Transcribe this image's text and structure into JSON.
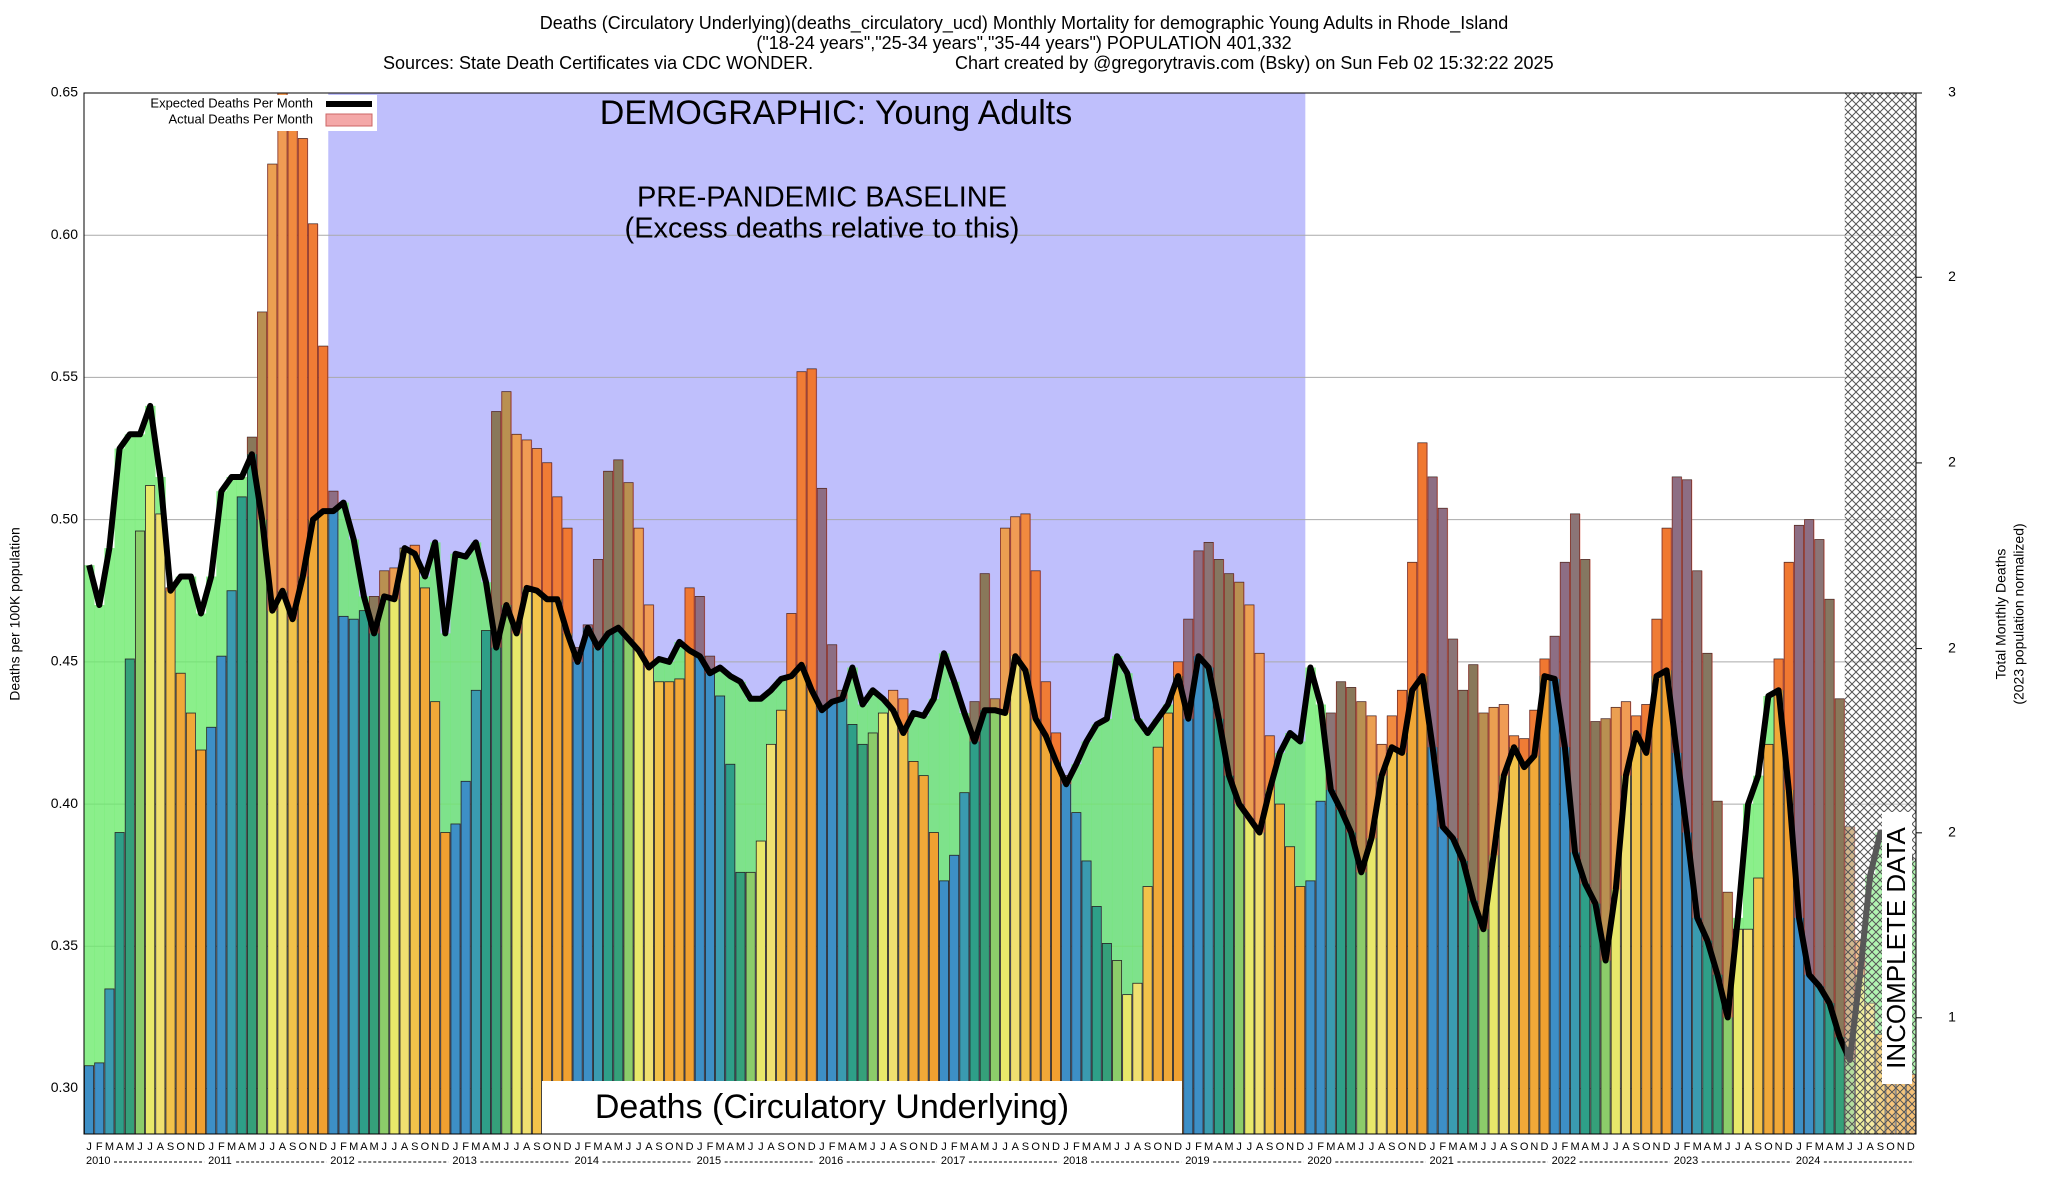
{
  "chart_data": {
    "type": "bar",
    "title": "Deaths (Circulatory Underlying)(deaths_circulatory_ucd) Monthly Mortality for demographic Young Adults in Rhode_Island",
    "subtitle": "(\"18-24 years\",\"25-34 years\",\"35-44 years\") POPULATION 401,332",
    "sources": "Sources: State Death Certificates via CDC WONDER.",
    "credit": "Chart created by @gregorytravis.com (Bsky) on Sun Feb 02 15:32:22 2025",
    "ylabel": "Deaths per 100K population",
    "y2label": "Total Monthly Deaths",
    "y2label_note": "(2023 population normalized)",
    "annotations": {
      "demographic": "DEMOGRAPHIC: Young Adults",
      "baseline": "PRE-PANDEMIC BASELINE",
      "baseline_note": "(Excess deaths relative to this)",
      "cause": "Deaths (Circulatory Underlying)",
      "incomplete": "INCOMPLETE DATA"
    },
    "years": [
      "2010",
      "2011",
      "2012",
      "2013",
      "2014",
      "2015",
      "2016",
      "2017",
      "2018",
      "2019",
      "2020",
      "2021",
      "2022",
      "2023",
      "2024"
    ],
    "categories": [
      "J",
      "F",
      "M",
      "A",
      "M",
      "J",
      "J",
      "A",
      "S",
      "O",
      "N",
      "D",
      "J",
      "F",
      "M",
      "A",
      "M",
      "J",
      "J",
      "A",
      "S",
      "O",
      "N",
      "D",
      "J",
      "F",
      "M",
      "A",
      "M",
      "J",
      "J",
      "A",
      "S",
      "O",
      "N",
      "D",
      "J",
      "F",
      "M",
      "A",
      "M",
      "J",
      "J",
      "A",
      "S",
      "O",
      "N",
      "D",
      "J",
      "F",
      "M",
      "A",
      "M",
      "J",
      "J",
      "A",
      "S",
      "O",
      "N",
      "D",
      "J",
      "F",
      "M",
      "A",
      "M",
      "J",
      "J",
      "A",
      "S",
      "O",
      "N",
      "D",
      "J",
      "F",
      "M",
      "A",
      "M",
      "J",
      "J",
      "A",
      "S",
      "O",
      "N",
      "D",
      "J",
      "F",
      "M",
      "A",
      "M",
      "J",
      "J",
      "A",
      "S",
      "O",
      "N",
      "D",
      "J",
      "F",
      "M",
      "A",
      "M",
      "J",
      "J",
      "A",
      "S",
      "O",
      "N",
      "D",
      "J",
      "F",
      "M",
      "A",
      "M",
      "J",
      "J",
      "A",
      "S",
      "O",
      "N",
      "D",
      "J",
      "F",
      "M",
      "A",
      "M",
      "J",
      "J",
      "A",
      "S",
      "O",
      "N",
      "D",
      "J",
      "F",
      "M",
      "A",
      "M",
      "J",
      "J",
      "A",
      "S",
      "O",
      "N",
      "D",
      "J",
      "F",
      "M",
      "A",
      "M",
      "J",
      "J",
      "A",
      "S",
      "O",
      "N",
      "D",
      "J",
      "F",
      "M",
      "A",
      "M",
      "J",
      "J",
      "A",
      "S",
      "O",
      "N",
      "D",
      "J",
      "F",
      "M",
      "A",
      "M",
      "J",
      "J",
      "A",
      "S",
      "O",
      "N",
      "D"
    ],
    "series": [
      {
        "name": "Expected Deaths Per Month",
        "color": "#000000",
        "values": [
          0.484,
          0.47,
          0.49,
          0.525,
          0.53,
          0.53,
          0.54,
          0.515,
          0.475,
          0.48,
          0.48,
          0.467,
          0.48,
          0.51,
          0.515,
          0.515,
          0.523,
          0.5,
          0.468,
          0.475,
          0.465,
          0.48,
          0.5,
          0.503,
          0.503,
          0.506,
          0.493,
          0.473,
          0.46,
          0.473,
          0.472,
          0.49,
          0.488,
          0.48,
          0.492,
          0.46,
          0.488,
          0.487,
          0.492,
          0.478,
          0.455,
          0.47,
          0.46,
          0.476,
          0.475,
          0.472,
          0.472,
          0.46,
          0.45,
          0.462,
          0.455,
          0.46,
          0.462,
          0.458,
          0.454,
          0.448,
          0.451,
          0.45,
          0.457,
          0.454,
          0.452,
          0.446,
          0.448,
          0.445,
          0.443,
          0.437,
          0.437,
          0.44,
          0.444,
          0.445,
          0.449,
          0.44,
          0.433,
          0.436,
          0.437,
          0.448,
          0.435,
          0.44,
          0.437,
          0.433,
          0.425,
          0.432,
          0.431,
          0.437,
          0.453,
          0.443,
          0.432,
          0.422,
          0.433,
          0.433,
          0.432,
          0.452,
          0.447,
          0.43,
          0.424,
          0.415,
          0.407,
          0.414,
          0.422,
          0.428,
          0.43,
          0.452,
          0.446,
          0.43,
          0.425,
          0.43,
          0.435,
          0.445,
          0.43,
          0.452,
          0.448,
          0.43,
          0.41,
          0.4,
          0.395,
          0.39,
          0.405,
          0.418,
          0.425,
          0.422,
          0.448,
          0.435,
          0.405,
          0.398,
          0.39,
          0.376,
          0.388,
          0.41,
          0.42,
          0.418,
          0.44,
          0.445,
          0.42,
          0.392,
          0.388,
          0.38,
          0.366,
          0.356,
          0.382,
          0.41,
          0.42,
          0.413,
          0.417,
          0.445,
          0.444,
          0.42,
          0.383,
          0.372,
          0.365,
          0.345,
          0.37,
          0.41,
          0.425,
          0.418,
          0.445,
          0.447,
          0.418,
          0.39,
          0.36,
          0.352,
          0.34,
          0.325,
          0.36,
          0.4,
          0.41,
          0.438,
          0.44,
          0.405,
          0.36,
          0.34,
          0.336,
          0.33,
          0.318,
          0.31,
          0.34,
          0.375,
          0.39,
          0.385,
          0.395,
          0.38
        ]
      },
      {
        "name": "Actual Deaths Per Month",
        "color": "#f4a8a8",
        "values": [
          0.308,
          0.309,
          0.335,
          0.39,
          0.451,
          0.496,
          0.512,
          0.502,
          0.476,
          0.446,
          0.432,
          0.419,
          0.427,
          0.452,
          0.475,
          0.508,
          0.529,
          0.573,
          0.625,
          0.66,
          0.645,
          0.634,
          0.604,
          0.561,
          0.51,
          0.466,
          0.465,
          0.468,
          0.473,
          0.482,
          0.483,
          0.49,
          0.491,
          0.476,
          0.436,
          0.39,
          0.393,
          0.408,
          0.44,
          0.461,
          0.538,
          0.545,
          0.53,
          0.528,
          0.525,
          0.52,
          0.508,
          0.497,
          0.455,
          0.463,
          0.486,
          0.517,
          0.521,
          0.513,
          0.497,
          0.47,
          0.443,
          0.443,
          0.444,
          0.476,
          0.473,
          0.452,
          0.438,
          0.414,
          0.376,
          0.376,
          0.387,
          0.421,
          0.433,
          0.467,
          0.552,
          0.553,
          0.511,
          0.456,
          0.44,
          0.428,
          0.421,
          0.425,
          0.432,
          0.44,
          0.437,
          0.415,
          0.41,
          0.39,
          0.373,
          0.382,
          0.404,
          0.436,
          0.481,
          0.437,
          0.497,
          0.501,
          0.502,
          0.482,
          0.443,
          0.425,
          0.41,
          0.397,
          0.38,
          0.364,
          0.351,
          0.345,
          0.333,
          0.337,
          0.371,
          0.42,
          0.432,
          0.45,
          0.465,
          0.489,
          0.492,
          0.486,
          0.481,
          0.478,
          0.47,
          0.453,
          0.424,
          0.4,
          0.385,
          0.371,
          0.373,
          0.401,
          0.432,
          0.443,
          0.441,
          0.436,
          0.431,
          0.421,
          0.431,
          0.44,
          0.485,
          0.527,
          0.515,
          0.504,
          0.458,
          0.44,
          0.449,
          0.432,
          0.434,
          0.435,
          0.424,
          0.423,
          0.433,
          0.451,
          0.459,
          0.485,
          0.502,
          0.486,
          0.429,
          0.43,
          0.434,
          0.436,
          0.431,
          0.435,
          0.465,
          0.497,
          0.515,
          0.514,
          0.482,
          0.453,
          0.401,
          0.369,
          0.356,
          0.356,
          0.374,
          0.421,
          0.451,
          0.485,
          0.498,
          0.5,
          0.493,
          0.472,
          0.437,
          0.392,
          0.352,
          0.33,
          0.319,
          0.31,
          0.305,
          0.305
        ]
      }
    ],
    "month_colors": [
      "#3d8fc6",
      "#3d8fc6",
      "#3a9bb0",
      "#2e9f88",
      "#35a07a",
      "#8ccc6a",
      "#e8e86a",
      "#f0e070",
      "#f2c24a",
      "#f0a838",
      "#f0a838",
      "#f0a030"
    ],
    "excess_color": "rgba(240,70,50,0.45)",
    "deficit_color": "rgba(110,235,110,0.8)",
    "baseline_color": "#bfbffc",
    "baseline_months": [
      24,
      119
    ],
    "incomplete_from": 173,
    "ylim": [
      0.284,
      0.65
    ],
    "yticks": [
      {
        "value": 0.3,
        "label": "0.30"
      },
      0.35,
      {
        "value": 0.4,
        "label": "0.40"
      },
      0.45,
      {
        "value": 0.5,
        "label": "0.50"
      },
      0.55,
      {
        "value": 0.6,
        "label": "0.60"
      },
      0.65
    ],
    "y2lim": [
      1.14,
      2.609
    ],
    "y2ticks": [
      {
        "value": 2.609,
        "label": "3"
      },
      {
        "value": 2.349,
        "label": "2"
      },
      {
        "value": 2.087,
        "label": "2"
      },
      {
        "value": 1.825,
        "label": "2"
      },
      {
        "value": 1.565,
        "label": "2"
      },
      {
        "value": 1.304,
        "label": "1"
      }
    ],
    "grid": true,
    "legend": "top-left"
  }
}
